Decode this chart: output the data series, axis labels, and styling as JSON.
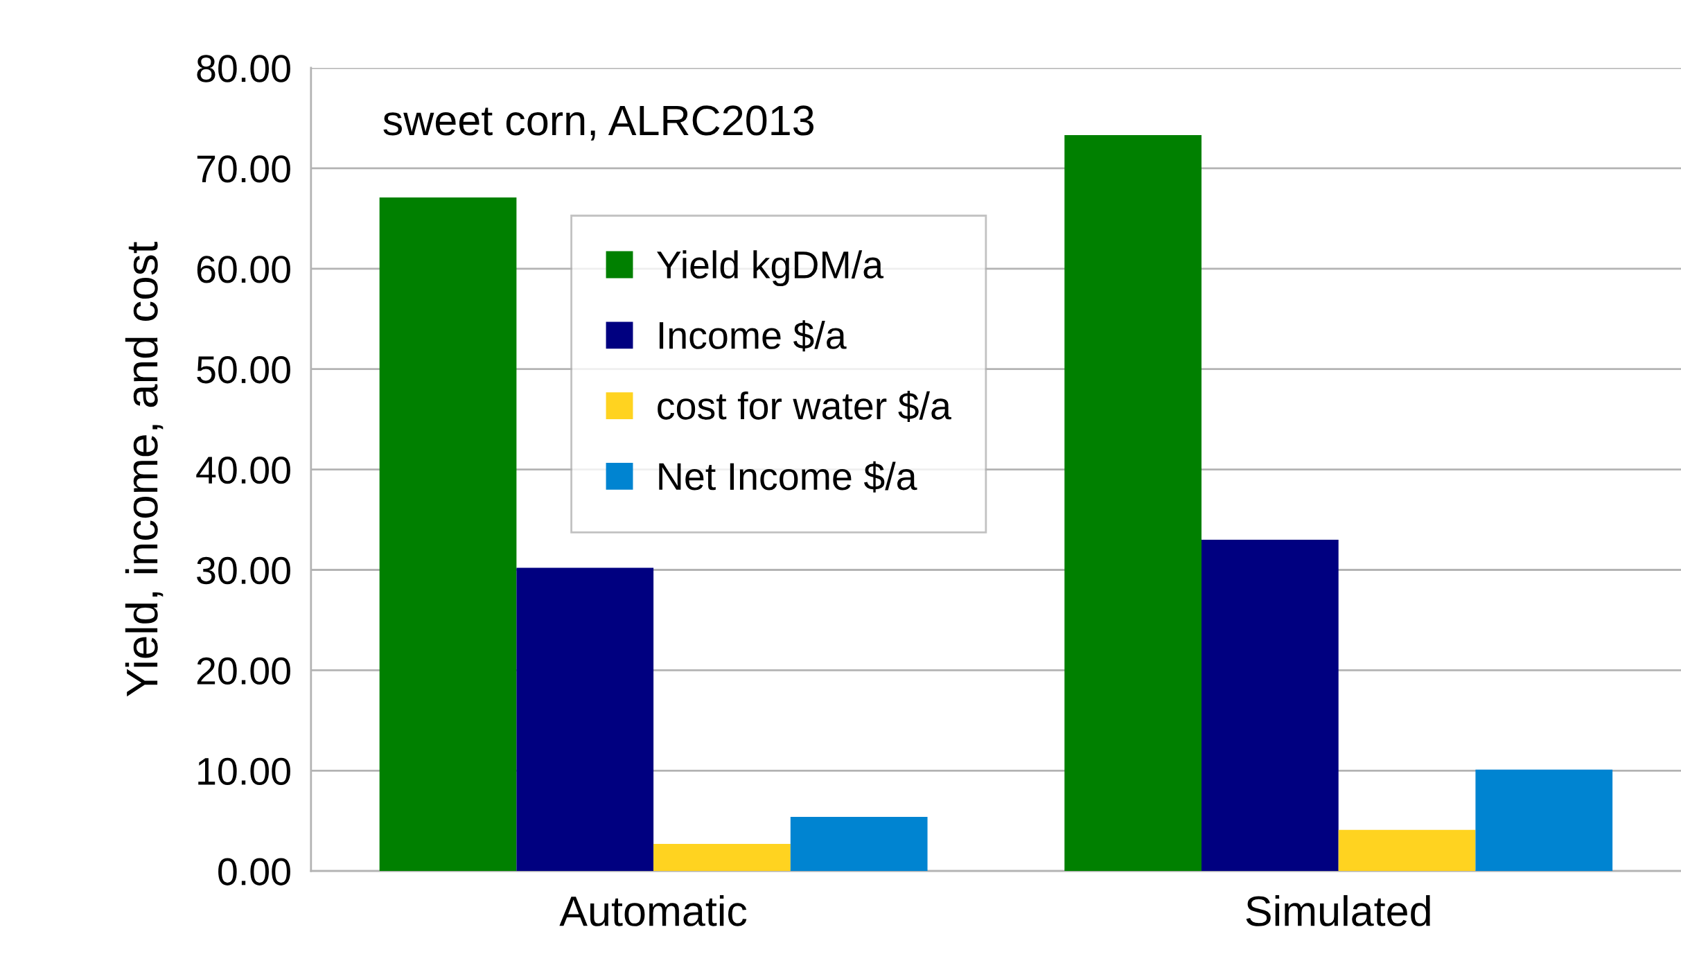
{
  "chart_data": {
    "type": "bar",
    "ylabel": "Yield, income, and cost",
    "annotations": [
      "sweet corn, ALRC2013"
    ],
    "categories": [
      "Automatic",
      "Simulated"
    ],
    "series": [
      {
        "name": "Yield kgDM/a",
        "color": "#008000",
        "values": [
          67.1,
          73.3
        ]
      },
      {
        "name": "Income $/a",
        "color": "#000080",
        "values": [
          30.2,
          33.0
        ]
      },
      {
        "name": "cost for water $/a",
        "color": "#ffd320",
        "values": [
          2.7,
          4.1
        ]
      },
      {
        "name": "Net Income $/a",
        "color": "#0084d1",
        "values": [
          5.4,
          10.1
        ]
      }
    ],
    "ylim": [
      0,
      80
    ],
    "yticks": [
      {
        "value": 0,
        "label": "0.00"
      },
      {
        "value": 10,
        "label": "10.00"
      },
      {
        "value": 20,
        "label": "20.00"
      },
      {
        "value": 30,
        "label": "30.00"
      },
      {
        "value": 40,
        "label": "40.00"
      },
      {
        "value": 50,
        "label": "50.00"
      },
      {
        "value": 60,
        "label": "60.00"
      },
      {
        "value": 70,
        "label": "70.00"
      },
      {
        "value": 80,
        "label": "80.00"
      }
    ],
    "grid": "y",
    "legend": "top"
  }
}
